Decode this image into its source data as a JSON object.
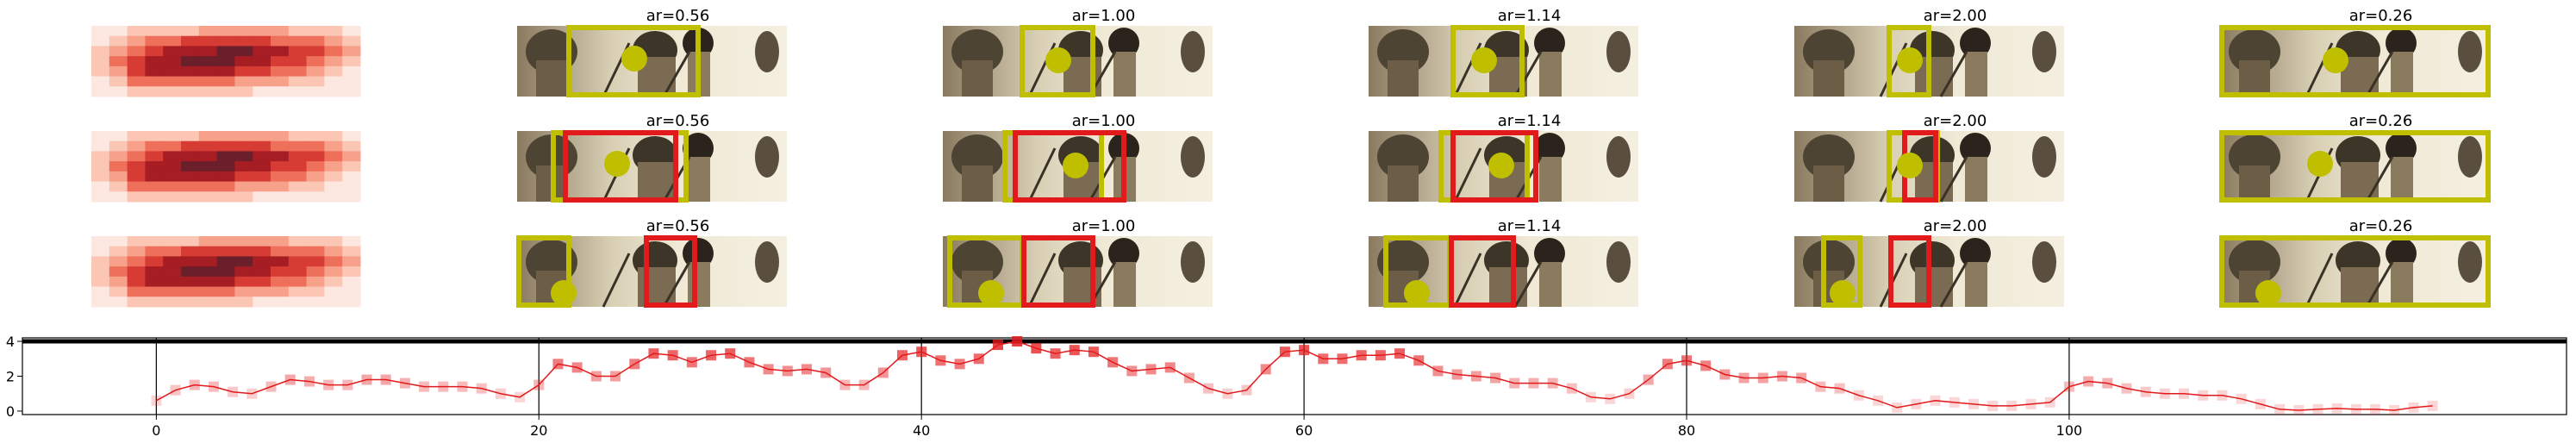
{
  "chart_data": [
    {
      "type": "heatmap",
      "rows": 3,
      "palette": [
        "#fde7e1",
        "#fbc6b4",
        "#f7a08a",
        "#ee6f5a",
        "#d63c34",
        "#a61d24",
        "#6b1f2a"
      ],
      "grid": [
        [
          0,
          0,
          1,
          1,
          1,
          1,
          2,
          2,
          2,
          2,
          2,
          1,
          1,
          1,
          0
        ],
        [
          0,
          1,
          2,
          3,
          3,
          4,
          4,
          4,
          4,
          4,
          3,
          3,
          3,
          2,
          1
        ],
        [
          1,
          2,
          3,
          4,
          5,
          5,
          5,
          6,
          6,
          5,
          5,
          4,
          4,
          3,
          2
        ],
        [
          1,
          3,
          4,
          5,
          5,
          6,
          6,
          6,
          5,
          5,
          4,
          4,
          3,
          2,
          1
        ],
        [
          1,
          2,
          4,
          5,
          5,
          5,
          5,
          5,
          4,
          4,
          3,
          3,
          2,
          1,
          0
        ],
        [
          0,
          1,
          3,
          3,
          3,
          3,
          3,
          3,
          2,
          2,
          2,
          1,
          1,
          0,
          0
        ],
        [
          0,
          0,
          1,
          1,
          1,
          1,
          1,
          1,
          1,
          0,
          0,
          0,
          0,
          0,
          0
        ]
      ]
    },
    {
      "type": "image-grid",
      "box_colors": {
        "yellow": "#bfbf00",
        "red": "#e31a1c"
      },
      "columns": [
        {
          "title": "ar=0.56"
        },
        {
          "title": "ar=1.00"
        },
        {
          "title": "ar=1.14"
        },
        {
          "title": "ar=2.00"
        },
        {
          "title": "ar=0.26"
        }
      ],
      "rows": 3
    },
    {
      "type": "line",
      "series_color": "#e31a1c",
      "marker": "square",
      "xlim": [
        -7,
        126
      ],
      "ylim": [
        -0.2,
        4.2
      ],
      "xticks": [
        0,
        20,
        40,
        60,
        80,
        100
      ],
      "yticks": [
        0,
        2,
        4
      ],
      "xtick_labels": [
        "0",
        "20",
        "40",
        "60",
        "80",
        "100"
      ],
      "ytick_labels": [
        "0",
        "2",
        "4"
      ],
      "vlines": [
        0,
        20,
        40,
        60,
        80,
        100
      ],
      "hline": 4.0,
      "y": [
        0.6,
        1.2,
        1.5,
        1.4,
        1.1,
        1.0,
        1.4,
        1.8,
        1.7,
        1.5,
        1.5,
        1.8,
        1.8,
        1.6,
        1.4,
        1.4,
        1.4,
        1.3,
        1.0,
        0.8,
        1.5,
        2.7,
        2.5,
        2.0,
        2.0,
        2.7,
        3.3,
        3.2,
        2.8,
        3.2,
        3.3,
        2.8,
        2.4,
        2.3,
        2.4,
        2.2,
        1.5,
        1.5,
        2.2,
        3.2,
        3.4,
        2.9,
        2.7,
        3.0,
        3.8,
        4.0,
        3.6,
        3.3,
        3.5,
        3.4,
        2.8,
        2.3,
        2.4,
        2.5,
        1.9,
        1.3,
        1.0,
        1.2,
        2.4,
        3.4,
        3.5,
        3.0,
        3.0,
        3.2,
        3.2,
        3.3,
        2.9,
        2.3,
        2.1,
        2.0,
        1.9,
        1.6,
        1.6,
        1.6,
        1.3,
        0.8,
        0.7,
        1.0,
        1.8,
        2.7,
        2.9,
        2.6,
        2.1,
        1.9,
        1.9,
        2.0,
        1.9,
        1.4,
        1.3,
        0.9,
        0.6,
        0.2,
        0.4,
        0.6,
        0.5,
        0.4,
        0.3,
        0.3,
        0.4,
        0.5,
        1.4,
        1.7,
        1.6,
        1.3,
        1.1,
        1.0,
        1.0,
        0.9,
        0.9,
        0.7,
        0.4,
        0.1,
        0.05,
        0.1,
        0.15,
        0.1,
        0.1,
        0.05,
        0.2,
        0.3
      ]
    }
  ]
}
